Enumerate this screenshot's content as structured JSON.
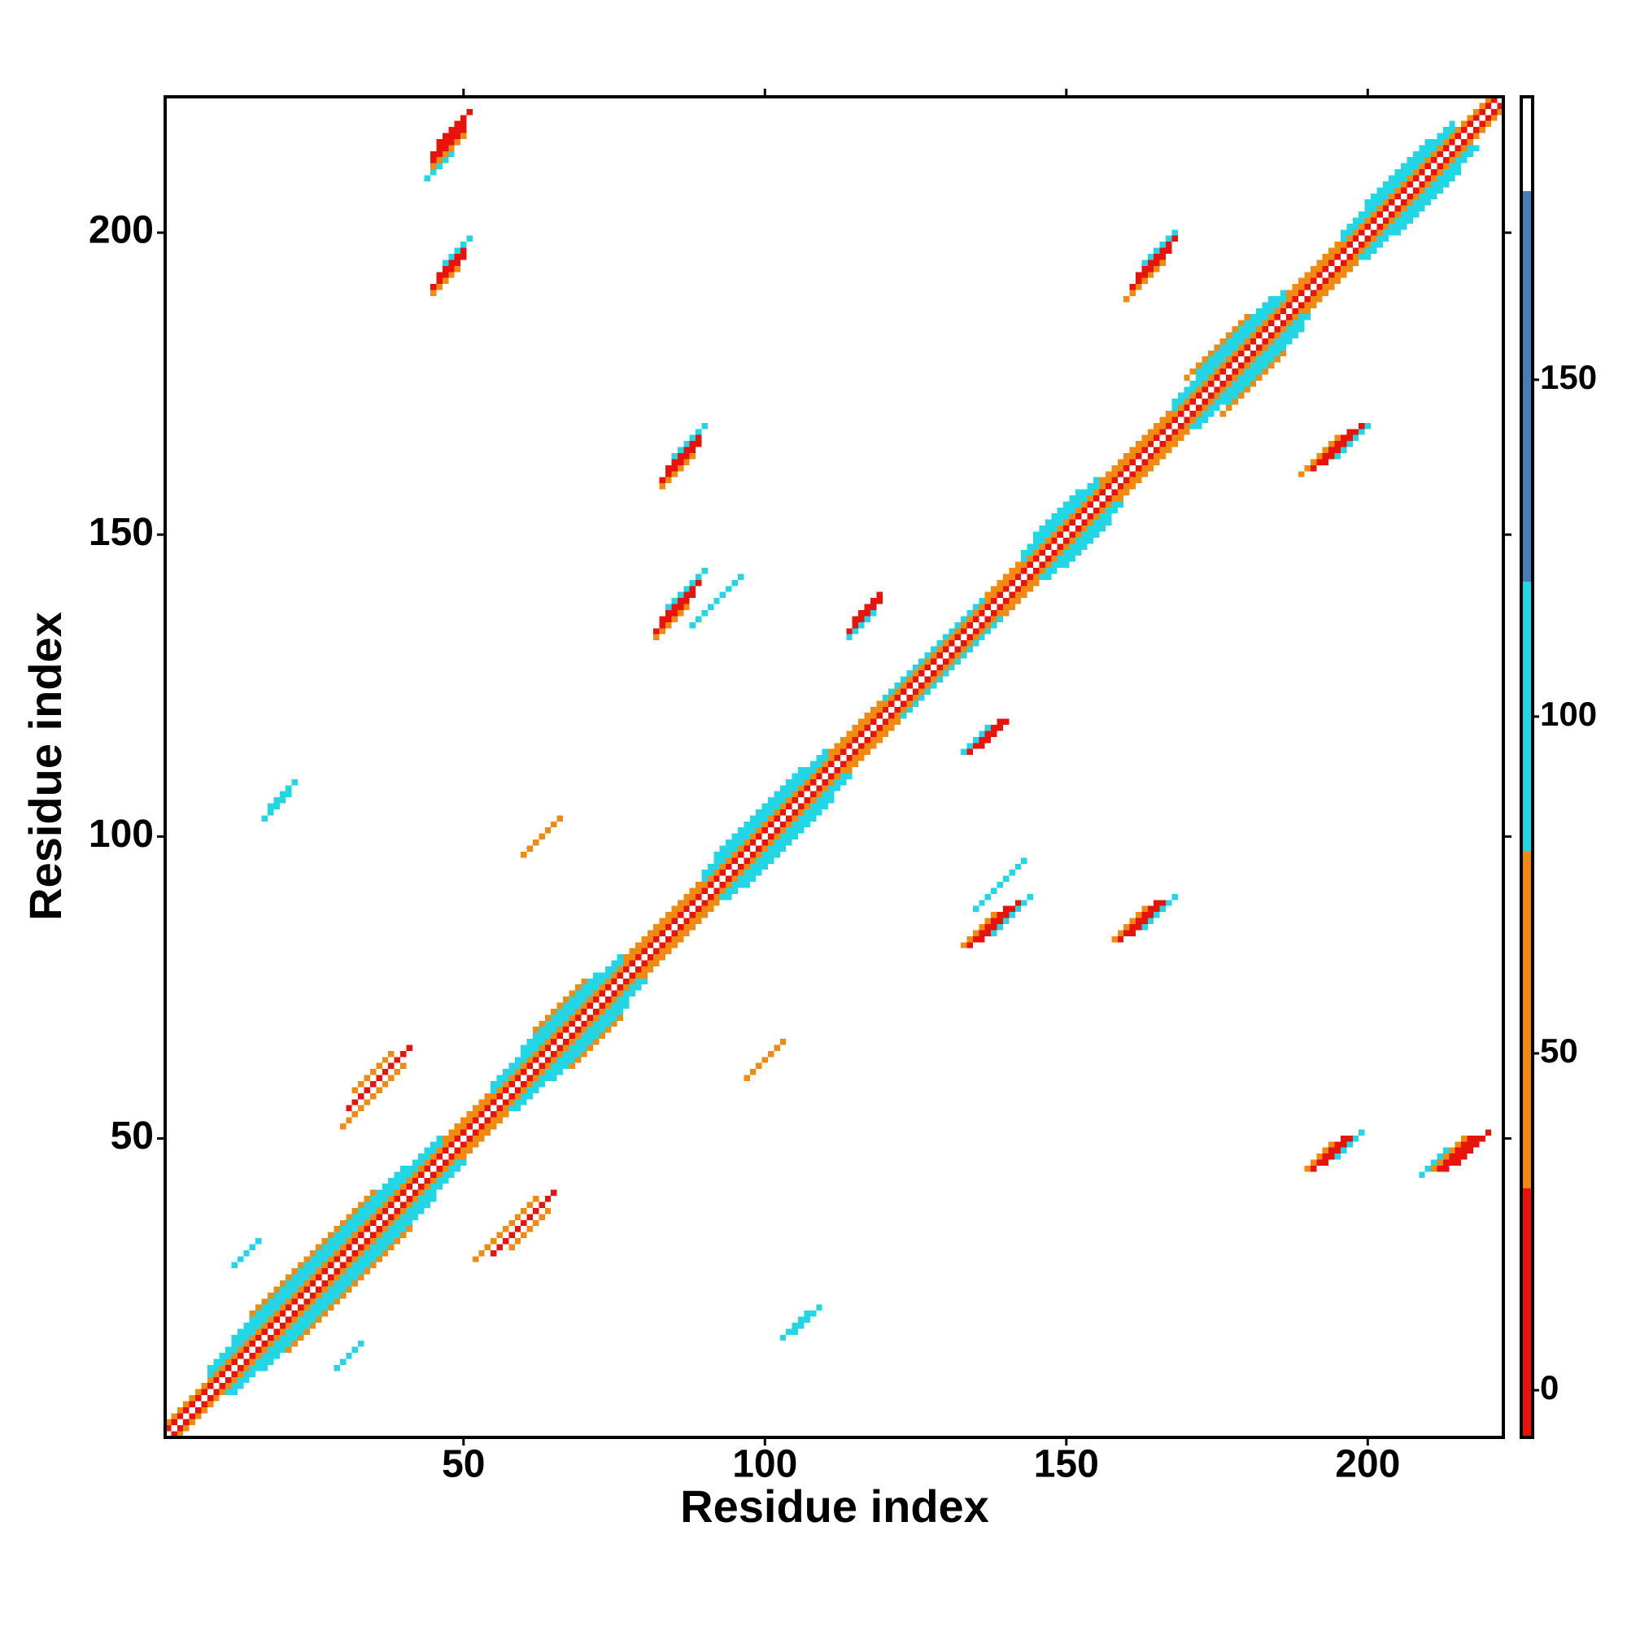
{
  "chart_data": {
    "type": "heatmap",
    "x_label": "Residue index",
    "y_label": "Residue index",
    "xlim": [
      0.5,
      222.5
    ],
    "ylim": [
      0.5,
      222.5
    ],
    "xticks": [
      50,
      100,
      150,
      200
    ],
    "yticks": [
      50,
      100,
      150,
      200
    ],
    "symmetric": true,
    "colorbar": {
      "ylim": [
        -7,
        192
      ],
      "yticks": [
        0,
        50,
        100,
        150
      ],
      "levels": [
        {
          "from": -7,
          "to": 30,
          "color": "#e8140c"
        },
        {
          "from": 30,
          "to": 80,
          "color": "#f08a10"
        },
        {
          "from": 80,
          "to": 120,
          "color": "#22d6e6"
        },
        {
          "from": 120,
          "to": 178,
          "color": "#4a7cb4"
        },
        {
          "from": 178,
          "to": 192,
          "color": "#ffffff"
        }
      ]
    },
    "strips": [
      [
        1,
        221,
        1,
        5
      ],
      [
        1,
        220,
        2,
        60
      ],
      [
        8,
        46,
        3,
        90
      ],
      [
        8,
        46,
        4,
        95
      ],
      [
        55,
        76,
        3,
        90
      ],
      [
        55,
        76,
        4,
        95
      ],
      [
        90,
        110,
        3,
        90
      ],
      [
        90,
        110,
        4,
        100
      ],
      [
        120,
        136,
        3,
        90
      ],
      [
        143,
        155,
        3,
        90
      ],
      [
        143,
        155,
        4,
        100
      ],
      [
        168,
        186,
        3,
        90
      ],
      [
        168,
        186,
        4,
        95
      ],
      [
        196,
        214,
        3,
        90
      ],
      [
        196,
        214,
        4,
        100
      ],
      [
        47,
        54,
        3,
        60
      ],
      [
        77,
        89,
        3,
        60
      ],
      [
        111,
        119,
        3,
        60
      ],
      [
        137,
        142,
        3,
        60
      ],
      [
        156,
        167,
        3,
        60
      ],
      [
        187,
        195,
        3,
        60
      ],
      [
        12,
        40,
        5,
        105
      ],
      [
        60,
        72,
        5,
        105
      ],
      [
        92,
        106,
        5,
        110
      ],
      [
        145,
        152,
        5,
        105
      ],
      [
        172,
        184,
        5,
        105
      ],
      [
        200,
        210,
        5,
        110
      ],
      [
        15,
        35,
        6,
        65
      ],
      [
        62,
        70,
        6,
        65
      ],
      [
        170,
        180,
        6,
        65
      ],
      [
        45,
        50,
        166,
        60
      ],
      [
        45,
        50,
        167,
        5
      ],
      [
        45,
        50,
        168,
        5
      ],
      [
        46,
        51,
        169,
        10
      ],
      [
        44,
        48,
        165,
        90
      ],
      [
        45,
        49,
        145,
        60
      ],
      [
        45,
        50,
        146,
        5
      ],
      [
        46,
        50,
        147,
        5
      ],
      [
        47,
        51,
        148,
        95
      ],
      [
        83,
        88,
        75,
        60
      ],
      [
        83,
        89,
        76,
        5
      ],
      [
        84,
        89,
        77,
        5
      ],
      [
        85,
        90,
        78,
        90
      ],
      [
        82,
        87,
        51,
        60
      ],
      [
        82,
        88,
        52,
        5
      ],
      [
        83,
        89,
        53,
        20
      ],
      [
        84,
        90,
        54,
        95
      ],
      [
        114,
        118,
        19,
        90
      ],
      [
        114,
        119,
        20,
        5
      ],
      [
        115,
        119,
        21,
        10
      ],
      [
        160,
        166,
        29,
        60
      ],
      [
        161,
        167,
        30,
        5
      ],
      [
        162,
        168,
        31,
        5
      ],
      [
        163,
        168,
        32,
        90
      ],
      [
        30,
        40,
        22,
        60
      ],
      [
        31,
        41,
        24,
        5
      ],
      [
        32,
        38,
        26,
        60
      ],
      [
        12,
        16,
        17,
        95
      ],
      [
        17,
        21,
        86,
        95
      ],
      [
        18,
        22,
        87,
        105
      ],
      [
        60,
        66,
        37,
        60
      ],
      [
        88,
        96,
        47,
        95
      ]
    ]
  }
}
